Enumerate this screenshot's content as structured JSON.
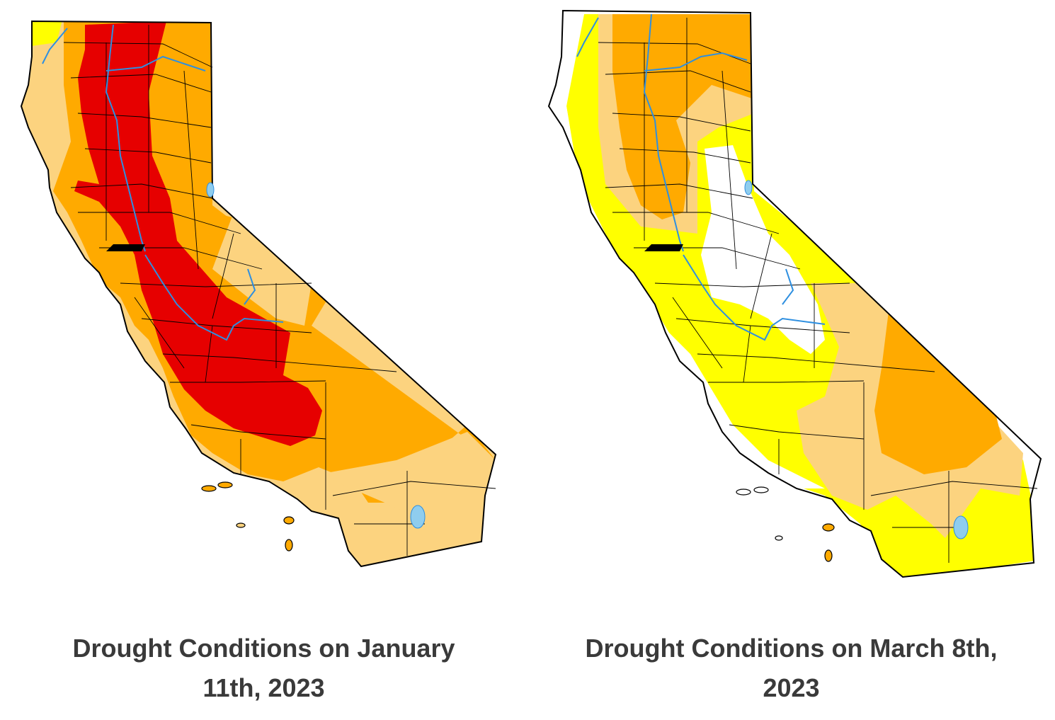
{
  "maps": [
    {
      "caption_line1": "Drought Conditions on January",
      "caption_line2": "11th, 2023"
    },
    {
      "caption_line1": "Drought Conditions on March 8th,",
      "caption_line2": "2023"
    }
  ],
  "colors": {
    "none": "#ffffff",
    "D0_abnormally_dry": "#ffff00",
    "D1_moderate": "#fcd37f",
    "D2_severe": "#ffaa00",
    "D3_extreme": "#e60000",
    "water": "#8fcdee",
    "rivers": "#2e8fe0",
    "borders": "#000000",
    "caption_text": "#3a3a3a"
  }
}
